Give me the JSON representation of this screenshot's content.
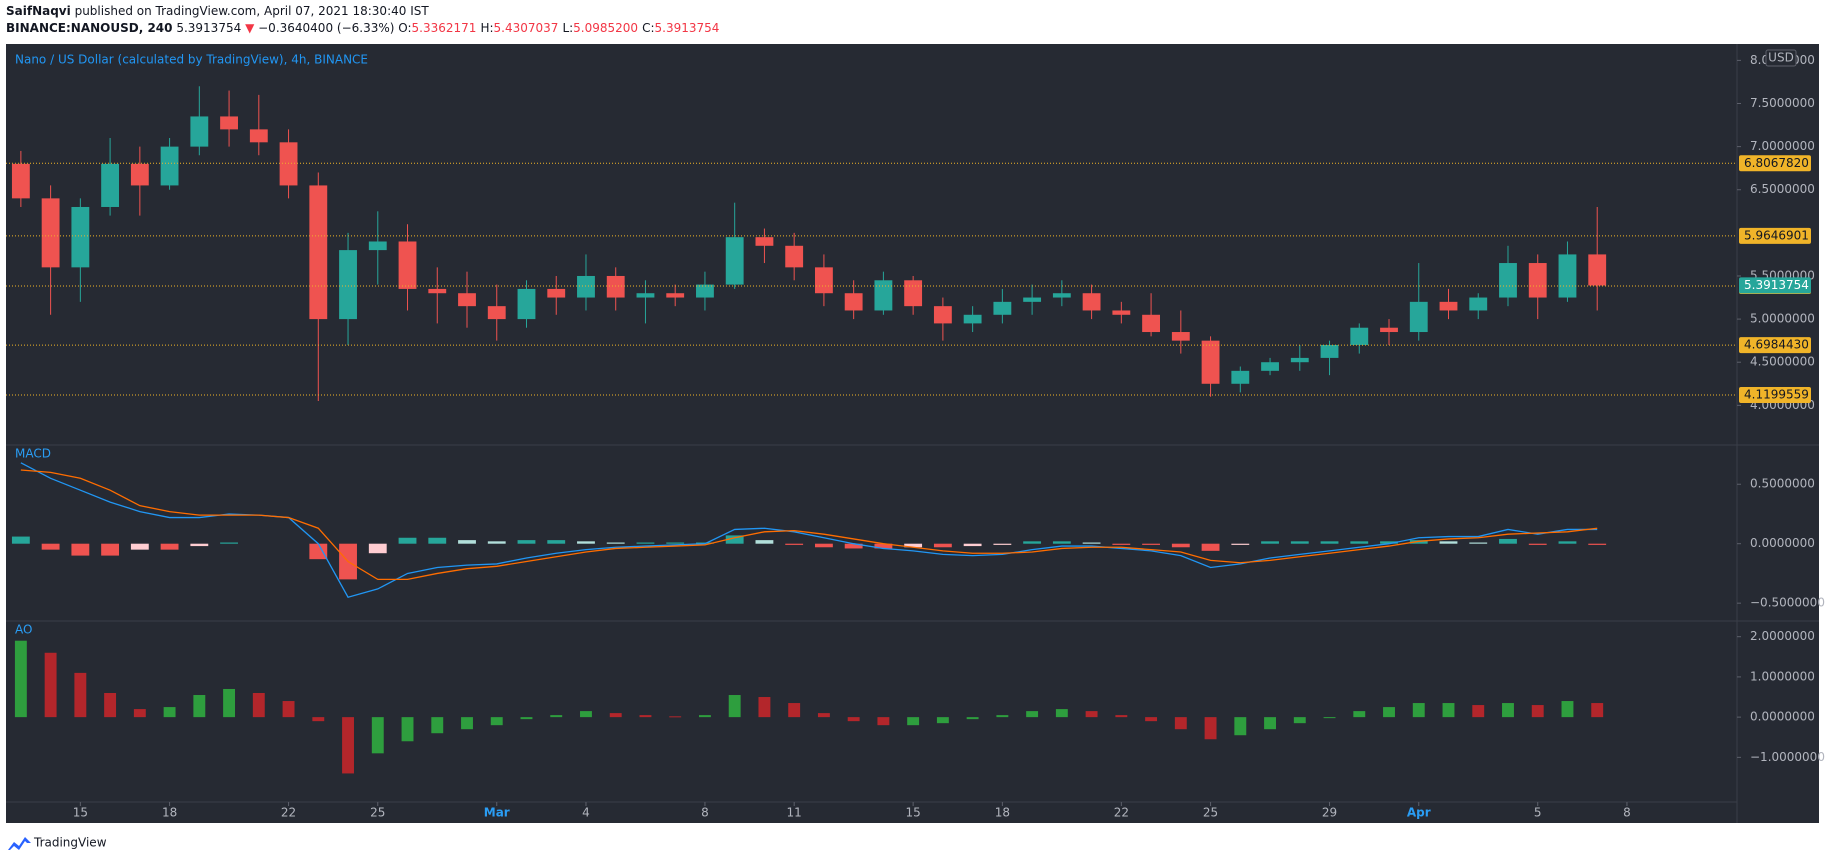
{
  "header": {
    "author": "SaifNaqvi",
    "published": "published on TradingView.com, April 07, 2021 18:30:40 IST",
    "symbol": "BINANCE:NANOUSD, 240",
    "last": "5.3913754",
    "arrow": "▼",
    "change": "−0.3640400 (−6.33%)",
    "ohlc": [
      {
        "label": "O:",
        "value": "5.3362171"
      },
      {
        "label": "H:",
        "value": "5.4307037"
      },
      {
        "label": "L:",
        "value": "5.0985200"
      },
      {
        "label": "C:",
        "value": "5.3913754"
      }
    ]
  },
  "footer": {
    "brand": "TradingView"
  },
  "chart_data": [
    {
      "type": "candlestick",
      "title": "Nano / US Dollar (calculated by TradingView), 4h, BINANCE",
      "currency": "USD",
      "up_color": "#26a69a",
      "down_color": "#ef5350",
      "values": [
        [
          6.8,
          6.95,
          6.3,
          6.4
        ],
        [
          6.4,
          6.55,
          5.05,
          5.6
        ],
        [
          5.6,
          6.4,
          5.2,
          6.3
        ],
        [
          6.3,
          7.1,
          6.2,
          6.8
        ],
        [
          6.8,
          7.0,
          6.2,
          6.55
        ],
        [
          6.55,
          7.1,
          6.5,
          7.0
        ],
        [
          7.0,
          7.7,
          6.9,
          7.35
        ],
        [
          7.35,
          7.65,
          7.0,
          7.2
        ],
        [
          7.2,
          7.6,
          6.9,
          7.05
        ],
        [
          7.05,
          7.2,
          6.4,
          6.55
        ],
        [
          6.55,
          6.7,
          4.05,
          5.0
        ],
        [
          5.0,
          6.0,
          4.7,
          5.8
        ],
        [
          5.8,
          6.25,
          5.4,
          5.9
        ],
        [
          5.9,
          6.1,
          5.1,
          5.35
        ],
        [
          5.35,
          5.6,
          4.95,
          5.3
        ],
        [
          5.3,
          5.55,
          4.9,
          5.15
        ],
        [
          5.15,
          5.4,
          4.75,
          5.0
        ],
        [
          5.0,
          5.45,
          4.9,
          5.35
        ],
        [
          5.35,
          5.5,
          5.05,
          5.25
        ],
        [
          5.25,
          5.75,
          5.1,
          5.5
        ],
        [
          5.5,
          5.6,
          5.1,
          5.25
        ],
        [
          5.25,
          5.45,
          4.95,
          5.3
        ],
        [
          5.3,
          5.4,
          5.15,
          5.25
        ],
        [
          5.25,
          5.55,
          5.1,
          5.4
        ],
        [
          5.4,
          6.35,
          5.35,
          5.95
        ],
        [
          5.95,
          6.05,
          5.65,
          5.85
        ],
        [
          5.85,
          6.0,
          5.45,
          5.6
        ],
        [
          5.6,
          5.75,
          5.15,
          5.3
        ],
        [
          5.3,
          5.45,
          5.0,
          5.1
        ],
        [
          5.1,
          5.55,
          5.05,
          5.45
        ],
        [
          5.45,
          5.5,
          5.05,
          5.15
        ],
        [
          5.15,
          5.25,
          4.75,
          4.95
        ],
        [
          4.95,
          5.15,
          4.85,
          5.05
        ],
        [
          5.05,
          5.35,
          4.95,
          5.2
        ],
        [
          5.2,
          5.4,
          5.05,
          5.25
        ],
        [
          5.25,
          5.45,
          5.15,
          5.3
        ],
        [
          5.3,
          5.4,
          5.0,
          5.1
        ],
        [
          5.1,
          5.2,
          4.95,
          5.05
        ],
        [
          5.05,
          5.3,
          4.8,
          4.85
        ],
        [
          4.85,
          5.1,
          4.6,
          4.75
        ],
        [
          4.75,
          4.8,
          4.1,
          4.25
        ],
        [
          4.25,
          4.45,
          4.15,
          4.4
        ],
        [
          4.4,
          4.55,
          4.35,
          4.5
        ],
        [
          4.5,
          4.7,
          4.4,
          4.55
        ],
        [
          4.55,
          4.75,
          4.35,
          4.7
        ],
        [
          4.7,
          4.95,
          4.6,
          4.9
        ],
        [
          4.9,
          5.0,
          4.7,
          4.85
        ],
        [
          4.85,
          5.65,
          4.75,
          5.2
        ],
        [
          5.2,
          5.35,
          5.0,
          5.1
        ],
        [
          5.1,
          5.3,
          5.0,
          5.25
        ],
        [
          5.25,
          5.85,
          5.15,
          5.65
        ],
        [
          5.65,
          5.75,
          5.0,
          5.25
        ],
        [
          5.25,
          5.9,
          5.2,
          5.75
        ],
        [
          5.75,
          6.3,
          5.1,
          5.39
        ]
      ],
      "ylim": [
        3.54,
        8.19
      ],
      "yticks": [
        {
          "value": 8,
          "label": "8.0000000"
        },
        {
          "value": 7.5,
          "label": "7.5000000"
        },
        {
          "value": 7,
          "label": "7.0000000"
        },
        {
          "value": 6.5,
          "label": "6.5000000"
        },
        {
          "value": 5.5,
          "label": "5.5000000"
        },
        {
          "value": 5,
          "label": "5.0000000"
        },
        {
          "value": 4.5,
          "label": "4.5000000"
        },
        {
          "value": 4,
          "label": "4.0000000"
        }
      ],
      "levels": [
        {
          "value": 6.806782,
          "label": "6.8067820"
        },
        {
          "value": 5.9646901,
          "label": "5.9646901"
        },
        {
          "value": 5.3840573,
          "label": "5.3840573"
        },
        {
          "value": 4.698443,
          "label": "4.6984430"
        },
        {
          "value": 4.1199559,
          "label": "4.1199559"
        }
      ],
      "level_color": "#f0b429",
      "last_price": 5.3913754,
      "last_color": "#26a69a"
    },
    {
      "type": "macd",
      "title": "MACD",
      "series": [
        {
          "color": "#2196f3",
          "values": [
            0.68,
            0.55,
            0.45,
            0.35,
            0.27,
            0.22,
            0.22,
            0.25,
            0.24,
            0.22,
            0.0,
            -0.45,
            -0.38,
            -0.25,
            -0.2,
            -0.18,
            -0.17,
            -0.12,
            -0.08,
            -0.05,
            -0.03,
            -0.02,
            -0.01,
            0.0,
            0.12,
            0.13,
            0.1,
            0.05,
            0.0,
            -0.04,
            -0.06,
            -0.09,
            -0.1,
            -0.09,
            -0.05,
            -0.02,
            -0.02,
            -0.04,
            -0.06,
            -0.1,
            -0.2,
            -0.17,
            -0.12,
            -0.09,
            -0.06,
            -0.03,
            0.0,
            0.05,
            0.06,
            0.06,
            0.12,
            0.08,
            0.12,
            0.12
          ]
        },
        {
          "color": "#ff6d00",
          "values": [
            0.62,
            0.6,
            0.55,
            0.45,
            0.32,
            0.27,
            0.24,
            0.24,
            0.24,
            0.22,
            0.13,
            -0.15,
            -0.3,
            -0.3,
            -0.25,
            -0.21,
            -0.19,
            -0.15,
            -0.11,
            -0.07,
            -0.04,
            -0.03,
            -0.02,
            -0.01,
            0.05,
            0.1,
            0.11,
            0.08,
            0.04,
            0.0,
            -0.03,
            -0.06,
            -0.08,
            -0.08,
            -0.07,
            -0.04,
            -0.03,
            -0.03,
            -0.05,
            -0.07,
            -0.14,
            -0.16,
            -0.14,
            -0.11,
            -0.08,
            -0.05,
            -0.02,
            0.02,
            0.04,
            0.05,
            0.08,
            0.09,
            0.1,
            0.13
          ]
        }
      ],
      "histogram": [
        0.06,
        -0.05,
        -0.1,
        -0.1,
        -0.05,
        -0.05,
        -0.02,
        0.01,
        0.0,
        0.0,
        -0.13,
        -0.3,
        -0.08,
        0.05,
        0.05,
        0.03,
        0.02,
        0.03,
        0.03,
        0.02,
        0.01,
        0.01,
        0.01,
        0.01,
        0.07,
        0.03,
        -0.01,
        -0.03,
        -0.04,
        -0.04,
        -0.03,
        -0.03,
        -0.02,
        -0.01,
        0.02,
        0.02,
        0.01,
        -0.01,
        -0.01,
        -0.03,
        -0.06,
        -0.01,
        0.02,
        0.02,
        0.02,
        0.02,
        0.02,
        0.03,
        0.02,
        0.01,
        0.04,
        -0.01,
        0.02,
        -0.01
      ],
      "histogram_colors": [
        "#26a69a",
        "#b2dfdb",
        "#ffcdd2",
        "#ef5350"
      ],
      "ylim": [
        -0.65,
        0.83
      ],
      "yticks": [
        {
          "value": 0.5,
          "label": "0.5000000"
        },
        {
          "value": 0,
          "label": "0.0000000"
        },
        {
          "value": -0.5,
          "label": "−0.5000000"
        }
      ]
    },
    {
      "type": "ao",
      "title": "AO",
      "up_color": "#2e9e3e",
      "down_color": "#b3262b",
      "values": [
        1.9,
        1.6,
        1.1,
        0.6,
        0.2,
        0.25,
        0.55,
        0.7,
        0.6,
        0.4,
        -0.1,
        -1.4,
        -0.9,
        -0.6,
        -0.4,
        -0.3,
        -0.2,
        -0.05,
        0.05,
        0.15,
        0.1,
        0.05,
        0.02,
        0.05,
        0.55,
        0.5,
        0.35,
        0.1,
        -0.1,
        -0.2,
        -0.2,
        -0.15,
        -0.05,
        0.05,
        0.15,
        0.2,
        0.15,
        0.05,
        -0.1,
        -0.3,
        -0.55,
        -0.45,
        -0.3,
        -0.15,
        0.0,
        0.15,
        0.25,
        0.35,
        0.35,
        0.3,
        0.35,
        0.3,
        0.4,
        0.35
      ],
      "ylim": [
        -2.11,
        2.39
      ],
      "yticks": [
        {
          "value": 2,
          "label": "2.0000000"
        },
        {
          "value": 1,
          "label": "1.0000000"
        },
        {
          "value": 0,
          "label": "0.0000000"
        },
        {
          "value": -1,
          "label": "−1.0000000"
        }
      ],
      "xlim": [
        -0.5,
        57.7
      ],
      "xticks": [
        {
          "value": 2,
          "label": "15"
        },
        {
          "value": 5,
          "label": "18"
        },
        {
          "value": 9,
          "label": "22"
        },
        {
          "value": 12,
          "label": "25"
        },
        {
          "value": 16,
          "label": "Mar"
        },
        {
          "value": 19,
          "label": "4"
        },
        {
          "value": 23,
          "label": "8"
        },
        {
          "value": 26,
          "label": "11"
        },
        {
          "value": 30,
          "label": "15"
        },
        {
          "value": 33,
          "label": "18"
        },
        {
          "value": 37,
          "label": "22"
        },
        {
          "value": 40,
          "label": "25"
        },
        {
          "value": 44,
          "label": "29"
        },
        {
          "value": 47,
          "label": "Apr"
        },
        {
          "value": 51,
          "label": "5"
        },
        {
          "value": 54,
          "label": "8"
        }
      ]
    }
  ]
}
